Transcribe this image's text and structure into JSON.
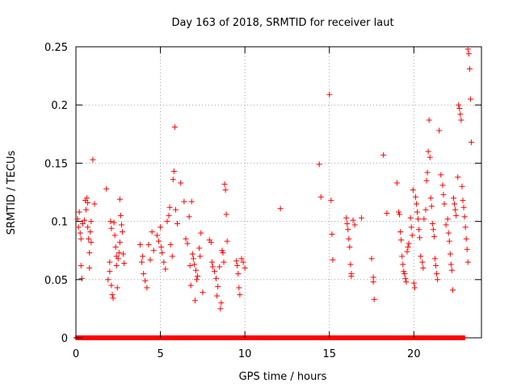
{
  "chart_data": {
    "type": "scatter",
    "title": "Day 163 of 2018, SRMTID for receiver laut",
    "xlabel": "GPS time / hours",
    "ylabel": "SRMTID / TECUs",
    "xlim": [
      0,
      24
    ],
    "ylim": [
      0,
      0.25
    ],
    "x_ticks": [
      0,
      5,
      10,
      15,
      20
    ],
    "x_tick_labels": [
      "0",
      "5",
      "10",
      "15",
      "20"
    ],
    "y_ticks": [
      0,
      0.05,
      0.1,
      0.15,
      0.2,
      0.25
    ],
    "y_tick_labels": [
      "0",
      "0.05",
      "0.1",
      "0.15",
      "0.2",
      "0.25"
    ],
    "grid": true,
    "marker": "+",
    "color": "#ff0000",
    "series": [
      {
        "name": "SRMTID",
        "zero_baseline_x_range": [
          0,
          23.0
        ],
        "points": [
          [
            0.1,
            0.102
          ],
          [
            0.15,
            0.095
          ],
          [
            0.2,
            0.108
          ],
          [
            0.25,
            0.09
          ],
          [
            0.3,
            0.085
          ],
          [
            0.3,
            0.062
          ],
          [
            0.35,
            0.051
          ],
          [
            0.4,
            0.098
          ],
          [
            0.5,
            0.101
          ],
          [
            0.55,
            0.118
          ],
          [
            0.6,
            0.11
          ],
          [
            0.65,
            0.12
          ],
          [
            0.7,
            0.116
          ],
          [
            0.7,
            0.095
          ],
          [
            0.75,
            0.085
          ],
          [
            0.8,
            0.073
          ],
          [
            0.8,
            0.06
          ],
          [
            0.85,
            0.091
          ],
          [
            0.9,
            0.1
          ],
          [
            0.9,
            0.082
          ],
          [
            1.0,
            0.153
          ],
          [
            1.1,
            0.115
          ],
          [
            1.8,
            0.128
          ],
          [
            1.9,
            0.05
          ],
          [
            2.0,
            0.065
          ],
          [
            2.0,
            0.057
          ],
          [
            2.05,
            0.1
          ],
          [
            2.1,
            0.094
          ],
          [
            2.1,
            0.045
          ],
          [
            2.15,
            0.037
          ],
          [
            2.2,
            0.034
          ],
          [
            2.25,
            0.099
          ],
          [
            2.3,
            0.088
          ],
          [
            2.35,
            0.078
          ],
          [
            2.4,
            0.07
          ],
          [
            2.4,
            0.062
          ],
          [
            2.45,
            0.043
          ],
          [
            2.5,
            0.068
          ],
          [
            2.55,
            0.073
          ],
          [
            2.6,
            0.082
          ],
          [
            2.6,
            0.119
          ],
          [
            2.65,
            0.105
          ],
          [
            2.7,
            0.097
          ],
          [
            2.75,
            0.091
          ],
          [
            2.8,
            0.072
          ],
          [
            2.85,
            0.064
          ],
          [
            3.8,
            0.08
          ],
          [
            3.9,
            0.065
          ],
          [
            3.95,
            0.07
          ],
          [
            4.0,
            0.055
          ],
          [
            4.1,
            0.049
          ],
          [
            4.2,
            0.043
          ],
          [
            4.3,
            0.08
          ],
          [
            4.4,
            0.067
          ],
          [
            4.5,
            0.091
          ],
          [
            4.6,
            0.075
          ],
          [
            4.8,
            0.088
          ],
          [
            4.9,
            0.083
          ],
          [
            5.0,
            0.095
          ],
          [
            5.05,
            0.078
          ],
          [
            5.1,
            0.073
          ],
          [
            5.2,
            0.065
          ],
          [
            5.3,
            0.059
          ],
          [
            5.4,
            0.1
          ],
          [
            5.5,
            0.105
          ],
          [
            5.55,
            0.112
          ],
          [
            5.6,
            0.08
          ],
          [
            5.7,
            0.07
          ],
          [
            5.75,
            0.136
          ],
          [
            5.8,
            0.143
          ],
          [
            5.85,
            0.181
          ],
          [
            5.9,
            0.11
          ],
          [
            6.0,
            0.098
          ],
          [
            6.2,
            0.133
          ],
          [
            6.4,
            0.117
          ],
          [
            6.5,
            0.085
          ],
          [
            6.6,
            0.081
          ],
          [
            6.7,
            0.104
          ],
          [
            6.75,
            0.062
          ],
          [
            6.8,
            0.045
          ],
          [
            6.85,
            0.117
          ],
          [
            6.9,
            0.072
          ],
          [
            6.95,
            0.068
          ],
          [
            7.0,
            0.063
          ],
          [
            7.05,
            0.032
          ],
          [
            7.1,
            0.058
          ],
          [
            7.15,
            0.05
          ],
          [
            7.2,
            0.053
          ],
          [
            7.3,
            0.077
          ],
          [
            7.35,
            0.07
          ],
          [
            7.4,
            0.09
          ],
          [
            7.5,
            0.039
          ],
          [
            7.9,
            0.084
          ],
          [
            8.0,
            0.082
          ],
          [
            8.05,
            0.065
          ],
          [
            8.1,
            0.061
          ],
          [
            8.2,
            0.057
          ],
          [
            8.3,
            0.051
          ],
          [
            8.35,
            0.036
          ],
          [
            8.4,
            0.044
          ],
          [
            8.5,
            0.061
          ],
          [
            8.55,
            0.025
          ],
          [
            8.6,
            0.03
          ],
          [
            8.65,
            0.075
          ],
          [
            8.7,
            0.073
          ],
          [
            8.75,
            0.065
          ],
          [
            8.8,
            0.132
          ],
          [
            8.85,
            0.127
          ],
          [
            8.9,
            0.106
          ],
          [
            8.95,
            0.083
          ],
          [
            9.5,
            0.066
          ],
          [
            9.55,
            0.062
          ],
          [
            9.6,
            0.055
          ],
          [
            9.65,
            0.043
          ],
          [
            9.7,
            0.037
          ],
          [
            9.8,
            0.068
          ],
          [
            9.9,
            0.065
          ],
          [
            10.0,
            0.06
          ],
          [
            12.1,
            0.111
          ],
          [
            14.4,
            0.149
          ],
          [
            14.5,
            0.121
          ],
          [
            15.0,
            0.209
          ],
          [
            15.1,
            0.118
          ],
          [
            15.15,
            0.089
          ],
          [
            15.2,
            0.067
          ],
          [
            16.0,
            0.103
          ],
          [
            16.05,
            0.098
          ],
          [
            16.1,
            0.093
          ],
          [
            16.15,
            0.085
          ],
          [
            16.2,
            0.078
          ],
          [
            16.25,
            0.063
          ],
          [
            16.3,
            0.055
          ],
          [
            16.3,
            0.053
          ],
          [
            16.4,
            0.101
          ],
          [
            16.5,
            0.097
          ],
          [
            16.9,
            0.103
          ],
          [
            17.5,
            0.068
          ],
          [
            17.6,
            0.052
          ],
          [
            17.6,
            0.048
          ],
          [
            17.65,
            0.033
          ],
          [
            18.2,
            0.157
          ],
          [
            18.4,
            0.107
          ],
          [
            19.0,
            0.133
          ],
          [
            19.1,
            0.108
          ],
          [
            19.15,
            0.106
          ],
          [
            19.2,
            0.091
          ],
          [
            19.25,
            0.084
          ],
          [
            19.3,
            0.07
          ],
          [
            19.35,
            0.063
          ],
          [
            19.4,
            0.057
          ],
          [
            19.45,
            0.055
          ],
          [
            19.5,
            0.051
          ],
          [
            19.55,
            0.048
          ],
          [
            19.6,
            0.074
          ],
          [
            19.65,
            0.078
          ],
          [
            19.7,
            0.081
          ],
          [
            19.8,
            0.103
          ],
          [
            19.85,
            0.095
          ],
          [
            19.9,
            0.088
          ],
          [
            19.95,
            0.127
          ],
          [
            20.0,
            0.047
          ],
          [
            20.05,
            0.043
          ],
          [
            20.1,
            0.121
          ],
          [
            20.15,
            0.115
          ],
          [
            20.2,
            0.108
          ],
          [
            20.25,
            0.102
          ],
          [
            20.3,
            0.093
          ],
          [
            20.35,
            0.086
          ],
          [
            20.4,
            0.07
          ],
          [
            20.5,
            0.065
          ],
          [
            20.55,
            0.06
          ],
          [
            20.6,
            0.102
          ],
          [
            20.7,
            0.11
          ],
          [
            20.75,
            0.135
          ],
          [
            20.8,
            0.142
          ],
          [
            20.85,
            0.16
          ],
          [
            20.9,
            0.187
          ],
          [
            20.95,
            0.155
          ],
          [
            21.0,
            0.12
          ],
          [
            21.05,
            0.113
          ],
          [
            21.1,
            0.098
          ],
          [
            21.15,
            0.093
          ],
          [
            21.2,
            0.087
          ],
          [
            21.25,
            0.068
          ],
          [
            21.3,
            0.062
          ],
          [
            21.35,
            0.055
          ],
          [
            21.4,
            0.05
          ],
          [
            21.5,
            0.178
          ],
          [
            21.6,
            0.14
          ],
          [
            21.7,
            0.131
          ],
          [
            21.75,
            0.123
          ],
          [
            21.8,
            0.115
          ],
          [
            21.9,
            0.097
          ],
          [
            22.0,
            0.102
          ],
          [
            22.05,
            0.09
          ],
          [
            22.1,
            0.083
          ],
          [
            22.15,
            0.072
          ],
          [
            22.2,
            0.063
          ],
          [
            22.25,
            0.058
          ],
          [
            22.3,
            0.041
          ],
          [
            22.35,
            0.12
          ],
          [
            22.4,
            0.115
          ],
          [
            22.45,
            0.11
          ],
          [
            22.5,
            0.105
          ],
          [
            22.6,
            0.138
          ],
          [
            22.65,
            0.2
          ],
          [
            22.7,
            0.197
          ],
          [
            22.75,
            0.192
          ],
          [
            22.8,
            0.187
          ],
          [
            22.85,
            0.13
          ],
          [
            22.9,
            0.118
          ],
          [
            22.95,
            0.112
          ],
          [
            23.0,
            0.104
          ],
          [
            23.05,
            0.095
          ],
          [
            23.1,
            0.085
          ],
          [
            23.15,
            0.076
          ],
          [
            23.2,
            0.065
          ],
          [
            23.2,
            0.248
          ],
          [
            23.25,
            0.244
          ],
          [
            23.3,
            0.231
          ],
          [
            23.35,
            0.205
          ],
          [
            23.4,
            0.168
          ]
        ]
      }
    ]
  }
}
